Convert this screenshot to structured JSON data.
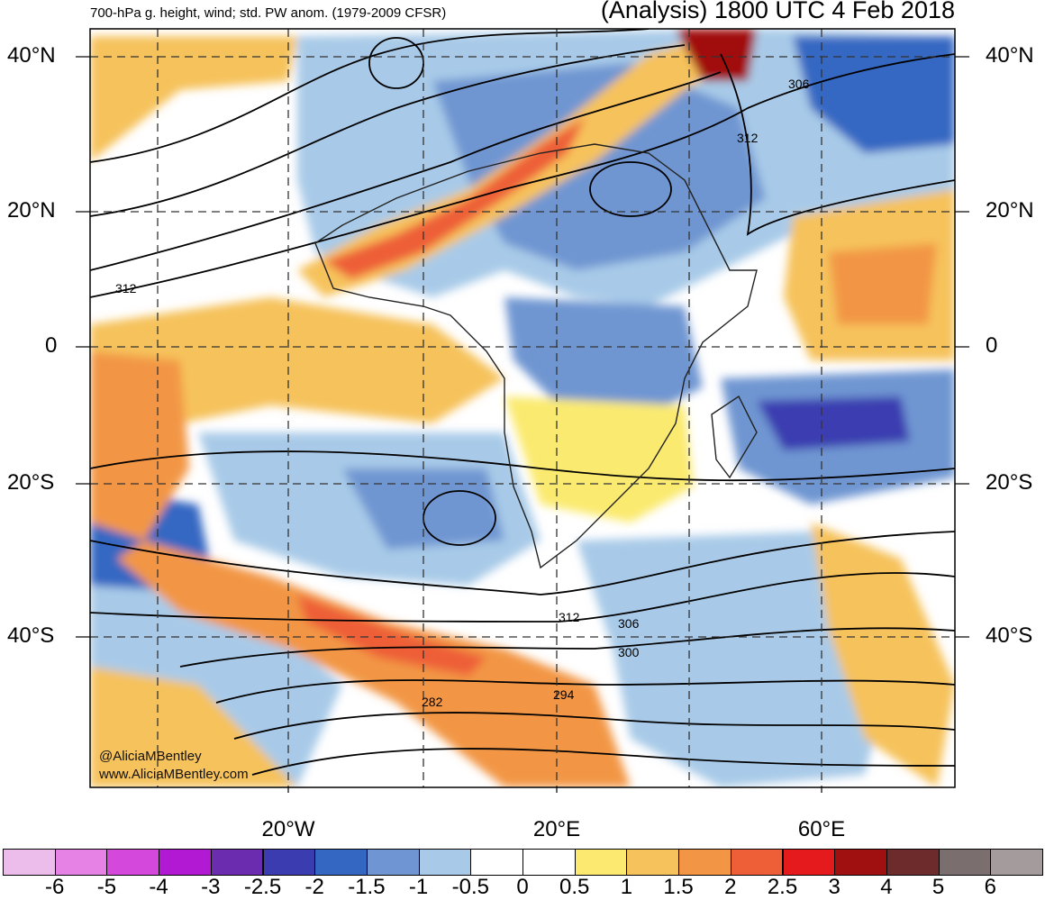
{
  "header": {
    "left_title": "700-hPa g. height, wind; std. PW anom. (1979-2009 CFSR)",
    "right_title": "(Analysis) 1800 UTC 4 Feb 2018"
  },
  "axes": {
    "lat_labels": [
      "40°N",
      "20°N",
      "0",
      "20°S",
      "40°S"
    ],
    "lon_labels": [
      "20°W",
      "20°E",
      "60°E"
    ]
  },
  "contour_labels": [
    "312",
    "306",
    "312",
    "312",
    "306",
    "300",
    "294",
    "282"
  ],
  "credits": {
    "handle": "@AliciaMBentley",
    "website": "www.AliciaMBentley.com"
  },
  "colorbar": {
    "labels": [
      "-6",
      "-5",
      "-4",
      "-3",
      "-2.5",
      "-2",
      "-1.5",
      "-1",
      "-0.5",
      "0",
      "0.5",
      "1",
      "1.5",
      "2",
      "2.5",
      "3",
      "4",
      "5",
      "6"
    ],
    "colors": [
      "#ecbdea",
      "#e682e6",
      "#d448dc",
      "#b219d2",
      "#6c2cb0",
      "#3a3cb0",
      "#3467c2",
      "#6f96d2",
      "#a8cae8",
      "#ffffff",
      "#ffffff",
      "#fbea6f",
      "#f6c25c",
      "#f29645",
      "#ee5f37",
      "#e41a1c",
      "#a11010",
      "#6e2b2b",
      "#7a6e6e",
      "#a49c9c"
    ]
  }
}
